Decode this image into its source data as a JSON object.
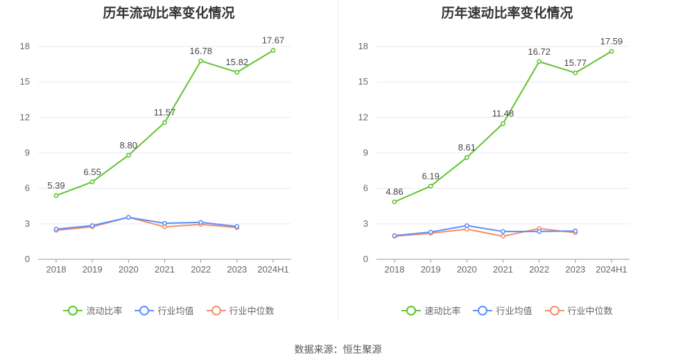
{
  "chart_data": [
    {
      "type": "line",
      "title": "历年流动比率变化情况",
      "categories": [
        "2018",
        "2019",
        "2020",
        "2021",
        "2022",
        "2023",
        "2024H1"
      ],
      "yticks": [
        0,
        3,
        6,
        9,
        12,
        15,
        18
      ],
      "ylim": [
        0,
        19
      ],
      "series": [
        {
          "name": "流动比率",
          "color": "#5ec42f",
          "labels": true,
          "values": [
            5.39,
            6.55,
            8.8,
            11.57,
            16.78,
            15.82,
            17.67
          ],
          "value_labels": [
            "5.39",
            "6.55",
            "8.80",
            "11.57",
            "16.78",
            "15.82",
            "17.67"
          ]
        },
        {
          "name": "行业均值",
          "color": "#5b8ff9",
          "labels": false,
          "values": [
            2.55,
            2.85,
            3.55,
            3.05,
            3.12,
            2.78,
            null
          ]
        },
        {
          "name": "行业中位数",
          "color": "#f58c6c",
          "labels": false,
          "values": [
            2.45,
            2.75,
            3.55,
            2.75,
            2.95,
            2.68,
            null
          ]
        }
      ]
    },
    {
      "type": "line",
      "title": "历年速动比率变化情况",
      "categories": [
        "2018",
        "2019",
        "2020",
        "2021",
        "2022",
        "2023",
        "2024H1"
      ],
      "yticks": [
        0,
        3,
        6,
        9,
        12,
        15,
        18
      ],
      "ylim": [
        0,
        19
      ],
      "series": [
        {
          "name": "速动比率",
          "color": "#5ec42f",
          "labels": true,
          "values": [
            4.86,
            6.19,
            8.61,
            11.48,
            16.72,
            15.77,
            17.59
          ],
          "value_labels": [
            "4.86",
            "6.19",
            "8.61",
            "11.48",
            "16.72",
            "15.77",
            "17.59"
          ]
        },
        {
          "name": "行业均值",
          "color": "#5b8ff9",
          "labels": false,
          "values": [
            2.0,
            2.3,
            2.85,
            2.35,
            2.35,
            2.4,
            null
          ]
        },
        {
          "name": "行业中位数",
          "color": "#f58c6c",
          "labels": false,
          "values": [
            1.95,
            2.2,
            2.55,
            1.95,
            2.6,
            2.25,
            null
          ]
        }
      ]
    }
  ],
  "source_text": "数据来源：恒生聚源"
}
